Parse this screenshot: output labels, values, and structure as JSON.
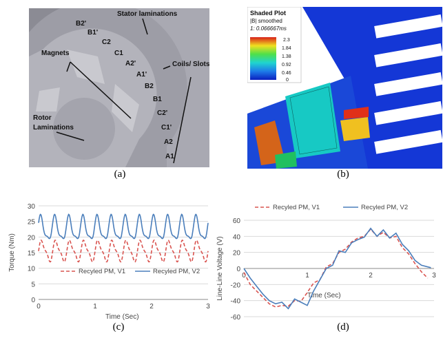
{
  "panels": {
    "a": {
      "caption": "(a)",
      "labels": {
        "stator": "Stator laminations",
        "magnets": "Magnets",
        "coils": "Coils/ Slots",
        "rotor_line1": "Rotor",
        "rotor_line2": "Laminations"
      },
      "slot_labels": [
        "B2'",
        "B1'",
        "C2",
        "C1",
        "A2'",
        "A1'",
        "B2",
        "B1",
        "C2'",
        "C1'",
        "A2",
        "A1"
      ]
    },
    "b": {
      "caption": "(b)",
      "legend": {
        "title": "Shaded Plot",
        "subtitle": "|B| smoothed",
        "time": "1: 0.066667ms",
        "ticks": [
          "2.3",
          "1.84",
          "1.38",
          "0.92",
          "0.46",
          "0"
        ]
      }
    },
    "c": {
      "caption": "(c)"
    },
    "d": {
      "caption": "(d)"
    }
  },
  "chart_data": [
    {
      "type": "line",
      "panel": "c",
      "xlabel": "Time (Sec)",
      "ylabel": "Torque (Nm)",
      "xlim": [
        0,
        3
      ],
      "ylim": [
        0,
        30
      ],
      "xticks": [
        "0",
        "1",
        "2",
        "3"
      ],
      "yticks": [
        "0",
        "5",
        "10",
        "15",
        "20",
        "25",
        "30"
      ],
      "grid": "horizontal",
      "legend_position": "bottom-center",
      "series": [
        {
          "name": "Recyled PM, V1",
          "color": "#d9534f",
          "dash": "dashed",
          "mean": 15.5,
          "amplitude": 4.0,
          "cycles": 12
        },
        {
          "name": "Recyled PM, V2",
          "color": "#4a7ebb",
          "dash": "solid",
          "mean": 22.5,
          "amplitude": 4.8,
          "cycles": 12
        }
      ]
    },
    {
      "type": "line",
      "panel": "d",
      "xlabel": "Time (Sec)",
      "ylabel": "Line-Line Voltage (V)",
      "xlim": [
        0,
        3
      ],
      "ylim": [
        -60,
        60
      ],
      "xticks": [
        "0",
        "1",
        "2",
        "3"
      ],
      "yticks": [
        "-60",
        "-40",
        "-20",
        "0",
        "20",
        "40",
        "60"
      ],
      "grid": "horizontal",
      "legend_position": "top",
      "series": [
        {
          "name": "Recyled PM, V1",
          "color": "#d9534f",
          "dash": "dashed",
          "x": [
            0,
            0.1,
            0.2,
            0.3,
            0.4,
            0.5,
            0.6,
            0.7,
            0.8,
            0.9,
            1.0,
            1.1,
            1.2,
            1.3,
            1.4,
            1.5,
            1.6,
            1.7,
            1.8,
            1.9,
            2.0,
            2.1,
            2.2,
            2.3,
            2.4,
            2.5,
            2.6,
            2.7,
            2.8,
            2.9
          ],
          "y": [
            -5,
            -20,
            -28,
            -36,
            -44,
            -48,
            -46,
            -47,
            -40,
            -41,
            -30,
            -18,
            -14,
            2,
            6,
            20,
            24,
            33,
            38,
            40,
            49,
            40,
            45,
            38,
            40,
            26,
            18,
            6,
            -4,
            -12
          ]
        },
        {
          "name": "Recyled PM, V2",
          "color": "#4a7ebb",
          "dash": "solid",
          "x": [
            0,
            0.1,
            0.2,
            0.3,
            0.4,
            0.5,
            0.6,
            0.7,
            0.8,
            0.9,
            1.0,
            1.1,
            1.2,
            1.3,
            1.4,
            1.5,
            1.6,
            1.7,
            1.8,
            1.9,
            2.0,
            2.1,
            2.2,
            2.3,
            2.4,
            2.5,
            2.6,
            2.7,
            2.8,
            2.9,
            2.95
          ],
          "y": [
            0,
            -12,
            -22,
            -32,
            -40,
            -44,
            -42,
            -50,
            -38,
            -42,
            -46,
            -28,
            -14,
            0,
            4,
            22,
            20,
            32,
            36,
            39,
            50,
            40,
            48,
            38,
            44,
            30,
            22,
            10,
            4,
            2,
            1
          ]
        }
      ]
    }
  ]
}
